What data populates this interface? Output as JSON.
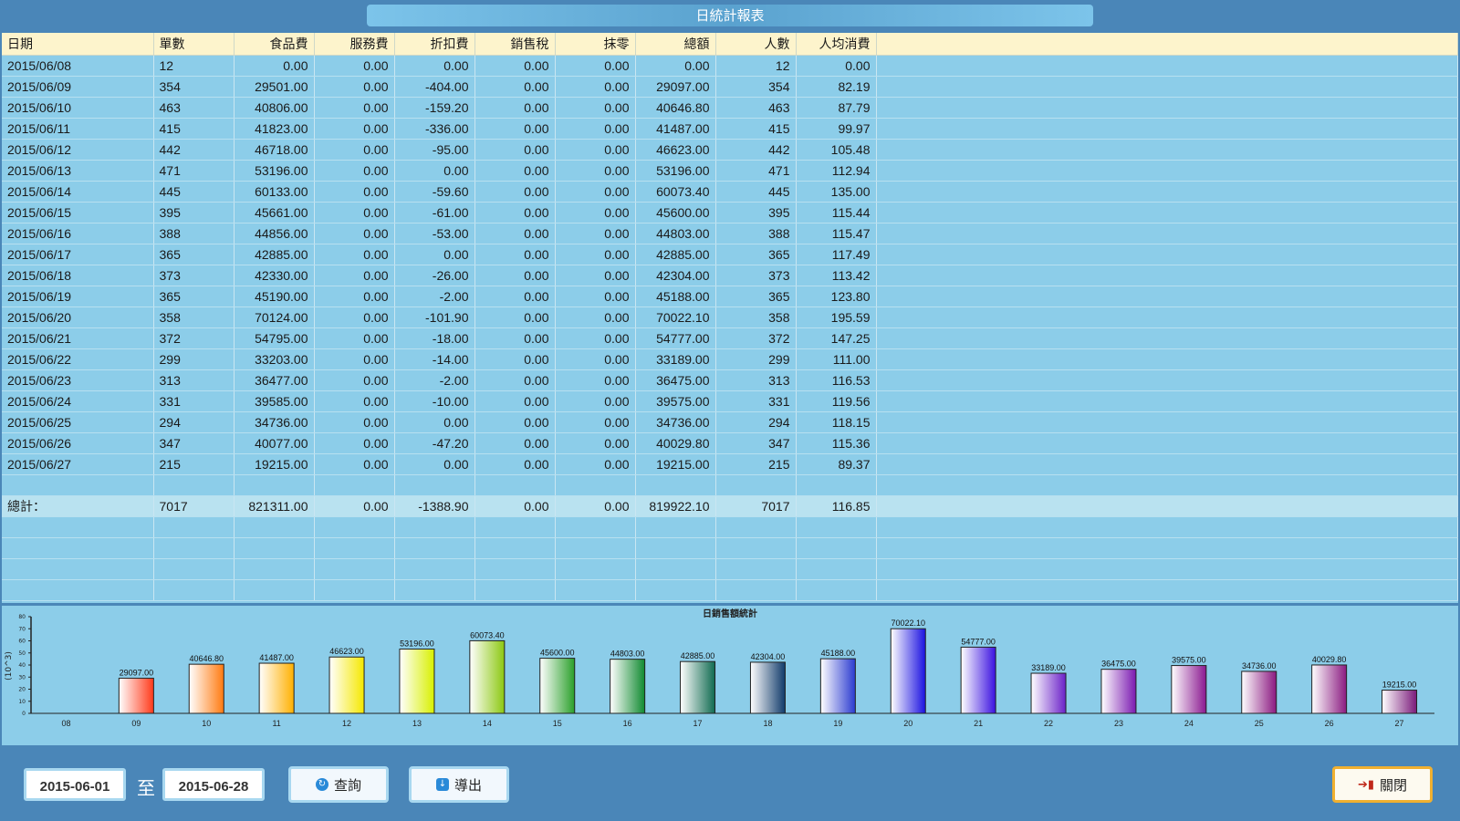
{
  "title": "日統計報表",
  "columns": [
    "日期",
    "單數",
    "食品費",
    "服務費",
    "折扣費",
    "銷售稅",
    "抹零",
    "總額",
    "人數",
    "人均消費"
  ],
  "rows": [
    [
      "2015/06/08",
      "12",
      "0.00",
      "0.00",
      "0.00",
      "0.00",
      "0.00",
      "0.00",
      "12",
      "0.00"
    ],
    [
      "2015/06/09",
      "354",
      "29501.00",
      "0.00",
      "-404.00",
      "0.00",
      "0.00",
      "29097.00",
      "354",
      "82.19"
    ],
    [
      "2015/06/10",
      "463",
      "40806.00",
      "0.00",
      "-159.20",
      "0.00",
      "0.00",
      "40646.80",
      "463",
      "87.79"
    ],
    [
      "2015/06/11",
      "415",
      "41823.00",
      "0.00",
      "-336.00",
      "0.00",
      "0.00",
      "41487.00",
      "415",
      "99.97"
    ],
    [
      "2015/06/12",
      "442",
      "46718.00",
      "0.00",
      "-95.00",
      "0.00",
      "0.00",
      "46623.00",
      "442",
      "105.48"
    ],
    [
      "2015/06/13",
      "471",
      "53196.00",
      "0.00",
      "0.00",
      "0.00",
      "0.00",
      "53196.00",
      "471",
      "112.94"
    ],
    [
      "2015/06/14",
      "445",
      "60133.00",
      "0.00",
      "-59.60",
      "0.00",
      "0.00",
      "60073.40",
      "445",
      "135.00"
    ],
    [
      "2015/06/15",
      "395",
      "45661.00",
      "0.00",
      "-61.00",
      "0.00",
      "0.00",
      "45600.00",
      "395",
      "115.44"
    ],
    [
      "2015/06/16",
      "388",
      "44856.00",
      "0.00",
      "-53.00",
      "0.00",
      "0.00",
      "44803.00",
      "388",
      "115.47"
    ],
    [
      "2015/06/17",
      "365",
      "42885.00",
      "0.00",
      "0.00",
      "0.00",
      "0.00",
      "42885.00",
      "365",
      "117.49"
    ],
    [
      "2015/06/18",
      "373",
      "42330.00",
      "0.00",
      "-26.00",
      "0.00",
      "0.00",
      "42304.00",
      "373",
      "113.42"
    ],
    [
      "2015/06/19",
      "365",
      "45190.00",
      "0.00",
      "-2.00",
      "0.00",
      "0.00",
      "45188.00",
      "365",
      "123.80"
    ],
    [
      "2015/06/20",
      "358",
      "70124.00",
      "0.00",
      "-101.90",
      "0.00",
      "0.00",
      "70022.10",
      "358",
      "195.59"
    ],
    [
      "2015/06/21",
      "372",
      "54795.00",
      "0.00",
      "-18.00",
      "0.00",
      "0.00",
      "54777.00",
      "372",
      "147.25"
    ],
    [
      "2015/06/22",
      "299",
      "33203.00",
      "0.00",
      "-14.00",
      "0.00",
      "0.00",
      "33189.00",
      "299",
      "111.00"
    ],
    [
      "2015/06/23",
      "313",
      "36477.00",
      "0.00",
      "-2.00",
      "0.00",
      "0.00",
      "36475.00",
      "313",
      "116.53"
    ],
    [
      "2015/06/24",
      "331",
      "39585.00",
      "0.00",
      "-10.00",
      "0.00",
      "0.00",
      "39575.00",
      "331",
      "119.56"
    ],
    [
      "2015/06/25",
      "294",
      "34736.00",
      "0.00",
      "0.00",
      "0.00",
      "0.00",
      "34736.00",
      "294",
      "118.15"
    ],
    [
      "2015/06/26",
      "347",
      "40077.00",
      "0.00",
      "-47.20",
      "0.00",
      "0.00",
      "40029.80",
      "347",
      "115.36"
    ],
    [
      "2015/06/27",
      "215",
      "19215.00",
      "0.00",
      "0.00",
      "0.00",
      "0.00",
      "19215.00",
      "215",
      "89.37"
    ]
  ],
  "total": [
    "總計：",
    "7017",
    "821311.00",
    "0.00",
    "-1388.90",
    "0.00",
    "0.00",
    "819922.10",
    "7017",
    "116.85"
  ],
  "chart_data": {
    "type": "bar",
    "title": "日銷售額統計",
    "ylabel": "(10^3)",
    "ylim": [
      0,
      80
    ],
    "yticks": [
      "0",
      "10",
      "20",
      "30",
      "40",
      "50",
      "60",
      "70",
      "80"
    ],
    "categories": [
      "08",
      "09",
      "10",
      "11",
      "12",
      "13",
      "14",
      "15",
      "16",
      "17",
      "18",
      "19",
      "20",
      "21",
      "22",
      "23",
      "24",
      "25",
      "26",
      "27"
    ],
    "values": [
      0,
      29097.0,
      40646.8,
      41487.0,
      46623.0,
      53196.0,
      60073.4,
      45600.0,
      44803.0,
      42885.0,
      42304.0,
      45188.0,
      70022.1,
      54777.0,
      33189.0,
      36475.0,
      39575.0,
      34736.0,
      40029.8,
      19215.0
    ],
    "value_labels": [
      "",
      "29097.00",
      "40646.80",
      "41487.00",
      "46623.00",
      "53196.00",
      "60073.40",
      "45600.00",
      "44803.00",
      "42885.00",
      "42304.00",
      "45188.00",
      "70022.10",
      "54777.00",
      "33189.00",
      "36475.00",
      "39575.00",
      "34736.00",
      "40029.80",
      "19215.00"
    ],
    "colors": [
      "#ff3a1a",
      "#ff3a1a",
      "#ff7a10",
      "#ffb000",
      "#f5e800",
      "#d8f000",
      "#8cc810",
      "#2aa02a",
      "#108a30",
      "#106a50",
      "#103a6a",
      "#2a3ad0",
      "#1a10e0",
      "#3a10e0",
      "#6a20c8",
      "#7a18b0",
      "#8a1890",
      "#8a1880",
      "#8a1a80",
      "#7a1a7a"
    ]
  },
  "controls": {
    "date_from": "2015-06-01",
    "to_label": "至",
    "date_to": "2015-06-28",
    "query_label": "查詢",
    "export_label": "導出",
    "close_label": "關閉"
  }
}
